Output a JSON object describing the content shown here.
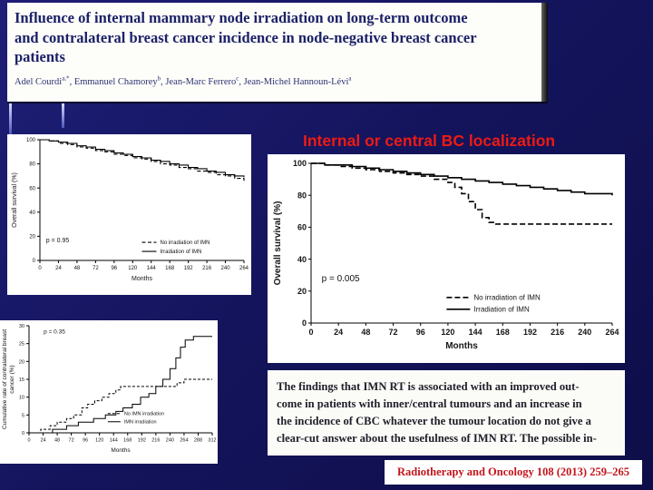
{
  "slide": {
    "background_color": "#14145c",
    "heading": {
      "text": "Internal or central BC localization",
      "color": "#ee1a12"
    }
  },
  "paper_header": {
    "title_color": "#1b2166",
    "title_lines": [
      "Influence of internal mammary node irradiation on long-term outcome",
      "and contralateral breast cancer incidence in node-negative breast cancer",
      "patients"
    ],
    "authors": [
      {
        "name": "Adel Courdi",
        "sup": "a,*"
      },
      {
        "name": "Emmanuel Chamorey",
        "sup": "b"
      },
      {
        "name": "Jean-Marc Ferrero",
        "sup": "c"
      },
      {
        "name": "Jean-Michel Hannoun-Lévi",
        "sup": "a"
      }
    ]
  },
  "excerpt": {
    "lines": [
      "The findings that IMN RT is associated with an improved out-",
      "come in patients with inner/central tumours and an increase in",
      "the incidence of CBC whatever the tumour location do not give a",
      "clear-cut answer about the usefulness of IMN RT. The possible in-"
    ]
  },
  "citation": {
    "text": "Radiotherapy and Oncology 108 (2013) 259–265",
    "color": "#c3151b"
  },
  "chart_data": [
    {
      "type": "line",
      "name": "overall-survival-all-patients",
      "title": "",
      "xlabel": "Months",
      "ylabel": "Overall survival (%)",
      "xlim": [
        0,
        264
      ],
      "ylim": [
        0,
        100
      ],
      "xticks": [
        0,
        24,
        48,
        72,
        96,
        120,
        144,
        168,
        192,
        216,
        240,
        264
      ],
      "yticks": [
        0,
        20,
        40,
        60,
        80,
        100
      ],
      "p_label": "p = 0.95",
      "legend_position": "lower right",
      "series": [
        {
          "name": "No irradiation of IMN",
          "style": "dashed",
          "points": [
            [
              0,
              100
            ],
            [
              12,
              99
            ],
            [
              24,
              97
            ],
            [
              36,
              96
            ],
            [
              48,
              94
            ],
            [
              60,
              93
            ],
            [
              72,
              91
            ],
            [
              84,
              90
            ],
            [
              96,
              88
            ],
            [
              108,
              87
            ],
            [
              120,
              85
            ],
            [
              132,
              84
            ],
            [
              144,
              82
            ],
            [
              156,
              80
            ],
            [
              168,
              79
            ],
            [
              180,
              77
            ],
            [
              192,
              76
            ],
            [
              204,
              74
            ],
            [
              216,
              73
            ],
            [
              228,
              71
            ],
            [
              240,
              70
            ],
            [
              252,
              68
            ],
            [
              264,
              66
            ]
          ]
        },
        {
          "name": "Irradiation of IMN",
          "style": "solid",
          "points": [
            [
              0,
              100
            ],
            [
              12,
              99
            ],
            [
              24,
              98
            ],
            [
              36,
              97
            ],
            [
              48,
              95
            ],
            [
              60,
              94
            ],
            [
              72,
              92
            ],
            [
              84,
              91
            ],
            [
              96,
              89
            ],
            [
              108,
              88
            ],
            [
              120,
              86
            ],
            [
              132,
              85
            ],
            [
              144,
              83
            ],
            [
              156,
              82
            ],
            [
              168,
              80
            ],
            [
              180,
              79
            ],
            [
              192,
              77
            ],
            [
              204,
              76
            ],
            [
              216,
              74
            ],
            [
              228,
              73
            ],
            [
              240,
              71
            ],
            [
              252,
              70
            ],
            [
              264,
              69
            ]
          ]
        }
      ]
    },
    {
      "type": "line",
      "name": "overall-survival-inner-central",
      "title": "",
      "xlabel": "Months",
      "ylabel": "Overall survival (%)",
      "xlim": [
        0,
        264
      ],
      "ylim": [
        0,
        100
      ],
      "xticks": [
        0,
        24,
        48,
        72,
        96,
        120,
        144,
        168,
        192,
        216,
        240,
        264
      ],
      "yticks": [
        0,
        20,
        40,
        60,
        80,
        100
      ],
      "p_label": "p = 0.005",
      "legend_position": "lower right",
      "series": [
        {
          "name": "No irradiation of IMN",
          "style": "dashed",
          "points": [
            [
              0,
              100
            ],
            [
              12,
              99
            ],
            [
              24,
              98
            ],
            [
              36,
              97
            ],
            [
              48,
              96
            ],
            [
              60,
              95
            ],
            [
              72,
              94
            ],
            [
              84,
              93
            ],
            [
              96,
              92
            ],
            [
              108,
              90
            ],
            [
              120,
              88
            ],
            [
              126,
              85
            ],
            [
              132,
              81
            ],
            [
              138,
              76
            ],
            [
              144,
              71
            ],
            [
              150,
              66
            ],
            [
              156,
              63
            ],
            [
              162,
              62
            ],
            [
              264,
              62
            ]
          ]
        },
        {
          "name": "Irradiation of IMN",
          "style": "solid",
          "points": [
            [
              0,
              100
            ],
            [
              12,
              99
            ],
            [
              24,
              99
            ],
            [
              36,
              98
            ],
            [
              48,
              97
            ],
            [
              60,
              96
            ],
            [
              72,
              95
            ],
            [
              84,
              94
            ],
            [
              96,
              93
            ],
            [
              108,
              92
            ],
            [
              120,
              91
            ],
            [
              132,
              90
            ],
            [
              144,
              89
            ],
            [
              156,
              88
            ],
            [
              168,
              87
            ],
            [
              180,
              86
            ],
            [
              192,
              85
            ],
            [
              204,
              84
            ],
            [
              216,
              83
            ],
            [
              228,
              82
            ],
            [
              240,
              81
            ],
            [
              264,
              80
            ]
          ]
        }
      ]
    },
    {
      "type": "line",
      "name": "cumulative-contralateral-breast-cancer",
      "title": "",
      "xlabel": "Months",
      "ylabel": "Cumulative rate of contralateral breast",
      "ylabel2": "cancer (%)",
      "xlim": [
        0,
        312
      ],
      "ylim": [
        0,
        30
      ],
      "xticks": [
        0,
        24,
        48,
        72,
        96,
        120,
        144,
        168,
        192,
        216,
        240,
        264,
        288,
        312
      ],
      "yticks": [
        0,
        5,
        10,
        15,
        20,
        25,
        30
      ],
      "p_label": "p = 0.35",
      "legend_position": "lower right",
      "series": [
        {
          "name": "No IMN irradiation",
          "style": "dashed",
          "points": [
            [
              0,
              0
            ],
            [
              20,
              1
            ],
            [
              36,
              2
            ],
            [
              48,
              3
            ],
            [
              64,
              4
            ],
            [
              76,
              5
            ],
            [
              90,
              7
            ],
            [
              100,
              8
            ],
            [
              112,
              9
            ],
            [
              124,
              10
            ],
            [
              136,
              11
            ],
            [
              148,
              12
            ],
            [
              156,
              13
            ],
            [
              240,
              13
            ],
            [
              252,
              14
            ],
            [
              264,
              15
            ],
            [
              312,
              15
            ]
          ]
        },
        {
          "name": "IMN irradiation",
          "style": "solid",
          "points": [
            [
              0,
              0
            ],
            [
              40,
              1
            ],
            [
              64,
              2
            ],
            [
              84,
              3
            ],
            [
              110,
              4
            ],
            [
              130,
              5
            ],
            [
              148,
              6
            ],
            [
              160,
              7
            ],
            [
              176,
              8
            ],
            [
              190,
              10
            ],
            [
              204,
              11
            ],
            [
              216,
              13
            ],
            [
              228,
              15
            ],
            [
              240,
              18
            ],
            [
              250,
              21
            ],
            [
              258,
              24
            ],
            [
              266,
              26
            ],
            [
              280,
              27
            ],
            [
              312,
              27
            ]
          ]
        }
      ]
    }
  ]
}
